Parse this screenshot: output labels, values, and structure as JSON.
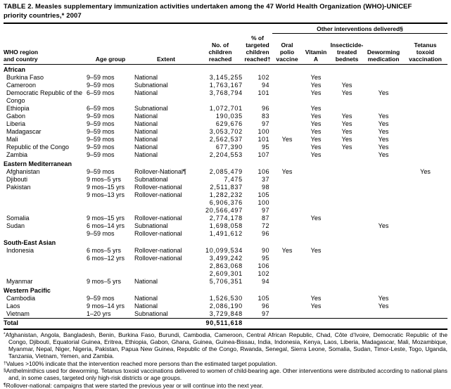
{
  "title": "TABLE 2. Measles supplementary immunization activities undertaken among the 47 World Health Organization (WHO)-UNICEF\npriority countries,* 2007",
  "table": {
    "group_header": "Other interventions delivered§",
    "columns": [
      {
        "label": "WHO region\nand country"
      },
      {
        "label": "Age group"
      },
      {
        "label": "Extent"
      },
      {
        "label": "No. of\nchildren\nreached"
      },
      {
        "label": "% of\ntargeted\nchildren\nreached†"
      },
      {
        "label": "Oral\npolio\nvaccine"
      },
      {
        "label": "Vitamin\nA"
      },
      {
        "label": "Insecticide-\ntreated\nbednets"
      },
      {
        "label": "Deworming\nmedication"
      },
      {
        "label": "Tetanus\ntoxoid\nvaccination"
      }
    ],
    "sections": [
      {
        "region": "African",
        "rows": [
          {
            "country": "Burkina Faso",
            "age": "9–59 mos",
            "extent": "National",
            "reached": "3,145,255",
            "pct": "102",
            "opv": "",
            "vita": "Yes",
            "itn": "",
            "deworm": "",
            "tt": ""
          },
          {
            "country": "Cameroon",
            "age": "9–59 mos",
            "extent": "Subnational",
            "reached": "1,763,167",
            "pct": "94",
            "opv": "",
            "vita": "Yes",
            "itn": "Yes",
            "deworm": "",
            "tt": ""
          },
          {
            "country": "Democratic Republic of the Congo",
            "age": "6–59 mos",
            "extent": "National",
            "reached": "3,768,794",
            "pct": "101",
            "opv": "",
            "vita": "Yes",
            "itn": "Yes",
            "deworm": "Yes",
            "tt": ""
          },
          {
            "country": "Ethiopia",
            "age": "6–59 mos",
            "extent": "Subnational",
            "reached": "1,072,701",
            "pct": "96",
            "opv": "",
            "vita": "Yes",
            "itn": "",
            "deworm": "",
            "tt": ""
          },
          {
            "country": "Gabon",
            "age": "9–59 mos",
            "extent": "National",
            "reached": "190,035",
            "pct": "83",
            "opv": "",
            "vita": "Yes",
            "itn": "Yes",
            "deworm": "Yes",
            "tt": ""
          },
          {
            "country": "Liberia",
            "age": "9–59 mos",
            "extent": "National",
            "reached": "629,676",
            "pct": "97",
            "opv": "",
            "vita": "Yes",
            "itn": "Yes",
            "deworm": "Yes",
            "tt": ""
          },
          {
            "country": "Madagascar",
            "age": "9–59 mos",
            "extent": "National",
            "reached": "3,053,702",
            "pct": "100",
            "opv": "",
            "vita": "Yes",
            "itn": "Yes",
            "deworm": "Yes",
            "tt": ""
          },
          {
            "country": "Mali",
            "age": "9–59 mos",
            "extent": "National",
            "reached": "2,562,537",
            "pct": "101",
            "opv": "Yes",
            "vita": "Yes",
            "itn": "Yes",
            "deworm": "Yes",
            "tt": ""
          },
          {
            "country": "Republic of the Congo",
            "age": "9–59 mos",
            "extent": "National",
            "reached": "677,390",
            "pct": "95",
            "opv": "",
            "vita": "Yes",
            "itn": "Yes",
            "deworm": "Yes",
            "tt": ""
          },
          {
            "country": "Zambia",
            "age": "9–59 mos",
            "extent": "National",
            "reached": "2,204,553",
            "pct": "107",
            "opv": "",
            "vita": "Yes",
            "itn": "",
            "deworm": "Yes",
            "tt": ""
          }
        ]
      },
      {
        "region": "Eastern Mediterranean",
        "rows": [
          {
            "country": "Afghanistan",
            "age": "9–59 mos",
            "extent": "Rollover-National¶",
            "reached": "2,085,479",
            "pct": "106",
            "opv": "Yes",
            "vita": "",
            "itn": "",
            "deworm": "",
            "tt": "Yes"
          },
          {
            "country": "Djibouti",
            "age": "9 mos–5 yrs",
            "extent": "Subnational",
            "reached": "7,475",
            "pct": "37",
            "opv": "",
            "vita": "",
            "itn": "",
            "deworm": "",
            "tt": ""
          },
          {
            "country": "Pakistan",
            "age": "9 mos–15 yrs",
            "extent": "Rollover-national",
            "reached": "2,511,837",
            "pct": "98",
            "opv": "",
            "vita": "",
            "itn": "",
            "deworm": "",
            "tt": ""
          },
          {
            "country": "",
            "age": "9 mos–13 yrs",
            "extent": "Rollover-national",
            "reached": "1,282,232",
            "pct": "105",
            "opv": "",
            "vita": "",
            "itn": "",
            "deworm": "",
            "tt": ""
          },
          {
            "country": "",
            "age": "",
            "extent": "",
            "reached": "6,906,376",
            "pct": "100",
            "opv": "",
            "vita": "",
            "itn": "",
            "deworm": "",
            "tt": ""
          },
          {
            "country": "",
            "age": "",
            "extent": "",
            "reached": "20,566,497",
            "pct": "97",
            "opv": "",
            "vita": "",
            "itn": "",
            "deworm": "",
            "tt": ""
          },
          {
            "country": "Somalia",
            "age": "9 mos–15 yrs",
            "extent": "Rollover-national",
            "reached": "2,774,178",
            "pct": "87",
            "opv": "",
            "vita": "Yes",
            "itn": "",
            "deworm": "",
            "tt": ""
          },
          {
            "country": "Sudan",
            "age": "6 mos–14 yrs",
            "extent": "Subnational",
            "reached": "1,698,058",
            "pct": "72",
            "opv": "",
            "vita": "",
            "itn": "",
            "deworm": "Yes",
            "tt": ""
          },
          {
            "country": "",
            "age": "9–59 mos",
            "extent": "Rollover-national",
            "reached": "1,491,612",
            "pct": "96",
            "opv": "",
            "vita": "",
            "itn": "",
            "deworm": "",
            "tt": ""
          }
        ]
      },
      {
        "region": "South-East Asian",
        "rows": [
          {
            "country": "Indonesia",
            "age": "6 mos–5 yrs",
            "extent": "Rollover-national",
            "reached": "10,099,534",
            "pct": "90",
            "opv": "Yes",
            "vita": "Yes",
            "itn": "",
            "deworm": "",
            "tt": ""
          },
          {
            "country": "",
            "age": "6 mos–12 yrs",
            "extent": "Rollover-national",
            "reached": "3,499,242",
            "pct": "95",
            "opv": "",
            "vita": "",
            "itn": "",
            "deworm": "",
            "tt": ""
          },
          {
            "country": "",
            "age": "",
            "extent": "",
            "reached": "2,863,068",
            "pct": "106",
            "opv": "",
            "vita": "",
            "itn": "",
            "deworm": "",
            "tt": ""
          },
          {
            "country": "",
            "age": "",
            "extent": "",
            "reached": "2,609,301",
            "pct": "102",
            "opv": "",
            "vita": "",
            "itn": "",
            "deworm": "",
            "tt": ""
          },
          {
            "country": "Myanmar",
            "age": "9 mos–5 yrs",
            "extent": "National",
            "reached": "5,706,351",
            "pct": "94",
            "opv": "",
            "vita": "",
            "itn": "",
            "deworm": "",
            "tt": ""
          }
        ]
      },
      {
        "region": "Western Pacific",
        "rows": [
          {
            "country": "Cambodia",
            "age": "9–59 mos",
            "extent": "National",
            "reached": "1,526,530",
            "pct": "105",
            "opv": "",
            "vita": "Yes",
            "itn": "",
            "deworm": "Yes",
            "tt": ""
          },
          {
            "country": "Laos",
            "age": "9 mos–14 yrs",
            "extent": "National",
            "reached": "2,086,190",
            "pct": "96",
            "opv": "",
            "vita": "Yes",
            "itn": "",
            "deworm": "Yes",
            "tt": ""
          },
          {
            "country": "Vietnam",
            "age": "1–20 yrs",
            "extent": "Subnational",
            "reached": "3,729,848",
            "pct": "97",
            "opv": "",
            "vita": "",
            "itn": "",
            "deworm": "",
            "tt": ""
          }
        ]
      }
    ],
    "total": {
      "label": "Total",
      "children_reached": "90,511,618"
    }
  },
  "footnotes": [
    {
      "marker": "*",
      "text": "Afghanistan, Angola, Bangladesh, Benin, Burkina Faso, Burundi, Cambodia, Cameroon, Central African Republic, Chad, Côte d’Ivoire, Democratic Republic of the Congo, Djibouti, Equatorial Guinea, Eritrea, Ethiopia, Gabon, Ghana, Guinea, Guinea-Bissau, India, Indonesia, Kenya, Laos, Liberia, Madagascar, Mali, Mozambique, Myanmar, Nepal, Niger, Nigeria, Pakistan, Papua New Guinea, Republic of the Congo, Rwanda, Senegal, Sierra Leone, Somalia, Sudan, Timor-Leste, Togo, Uganda, Tanzania, Vietnam, Yemen, and Zambia."
    },
    {
      "marker": "†",
      "text": "Values >100% indicate that the intervention reached more persons than the estimated target population."
    },
    {
      "marker": "§",
      "text": "Anthelminthics used for deworming. Tetanus toxoid vaccinations delivered to women of child-bearing age. Other interventions were distributed according to national plans and, in some cases, targeted only high-risk districts or age groups."
    },
    {
      "marker": "¶",
      "text": "Rollover-national: campaigns that were started the previous year or will continue into the next year."
    }
  ]
}
